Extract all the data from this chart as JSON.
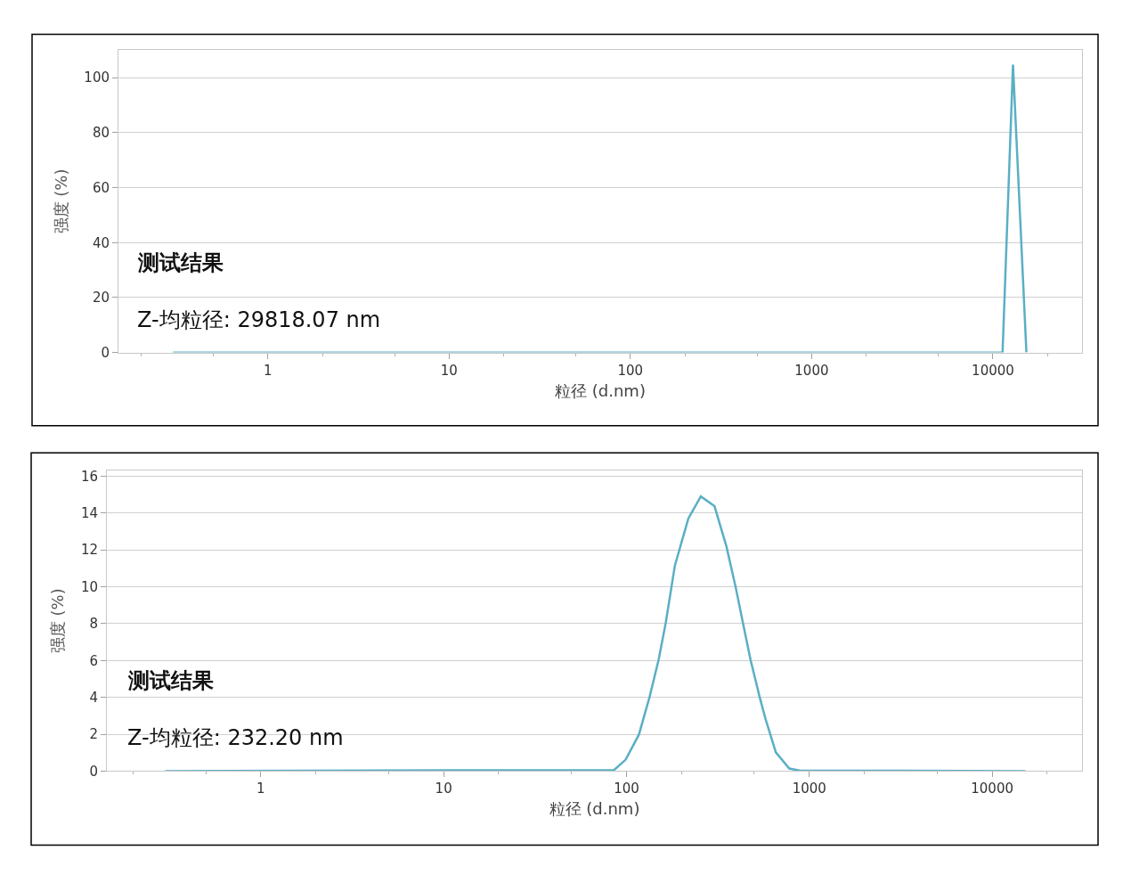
{
  "chart_data": [
    {
      "type": "line",
      "xlabel": "粒径 (d.nm)",
      "ylabel": "强度 (%)",
      "log": "x",
      "grid": "y",
      "marker": "none",
      "line_style": "solid",
      "annotations": [
        "测试结果",
        "Z-均粒径: 29818.07 nm"
      ],
      "xlim": [
        0.15,
        31000
      ],
      "xticks": [
        1,
        10,
        100,
        1000,
        10000
      ],
      "ylim": [
        0,
        110
      ],
      "yticks": [
        0,
        20,
        40,
        60,
        80,
        100
      ],
      "series": [
        {
          "color": "#5aafc4",
          "x": [
            0.3,
            11300,
            12900,
            15300
          ],
          "values": [
            0,
            0,
            104.8,
            0
          ]
        }
      ]
    },
    {
      "type": "line",
      "xlabel": "粒径 (d.nm)",
      "ylabel": "强度 (%)",
      "log": "x",
      "grid": "y",
      "marker": "none",
      "line_style": "solid",
      "annotations": [
        "测试结果",
        "Z-均粒径: 232.20 nm"
      ],
      "xlim": [
        0.144,
        31000
      ],
      "xticks": [
        1,
        10,
        100,
        1000,
        10000
      ],
      "ylim": [
        0,
        16.3
      ],
      "yticks": [
        0,
        2,
        4,
        6,
        8,
        10,
        12,
        14,
        16
      ],
      "series": [
        {
          "color": "#5aafc4",
          "x": [
            0.3,
            85.5,
            99,
            117,
            134,
            150,
            164,
            184,
            218,
            255,
            303,
            352,
            396,
            435,
            477,
            534,
            575,
            656,
            777,
            883,
            15200
          ],
          "values": [
            0,
            0.06,
            0.62,
            1.98,
            4.05,
            6.05,
            8.04,
            11.15,
            13.7,
            14.9,
            14.37,
            12.19,
            9.95,
            7.96,
            6.04,
            4.05,
            2.85,
            1.02,
            0.14,
            0.03,
            0
          ]
        }
      ]
    }
  ]
}
